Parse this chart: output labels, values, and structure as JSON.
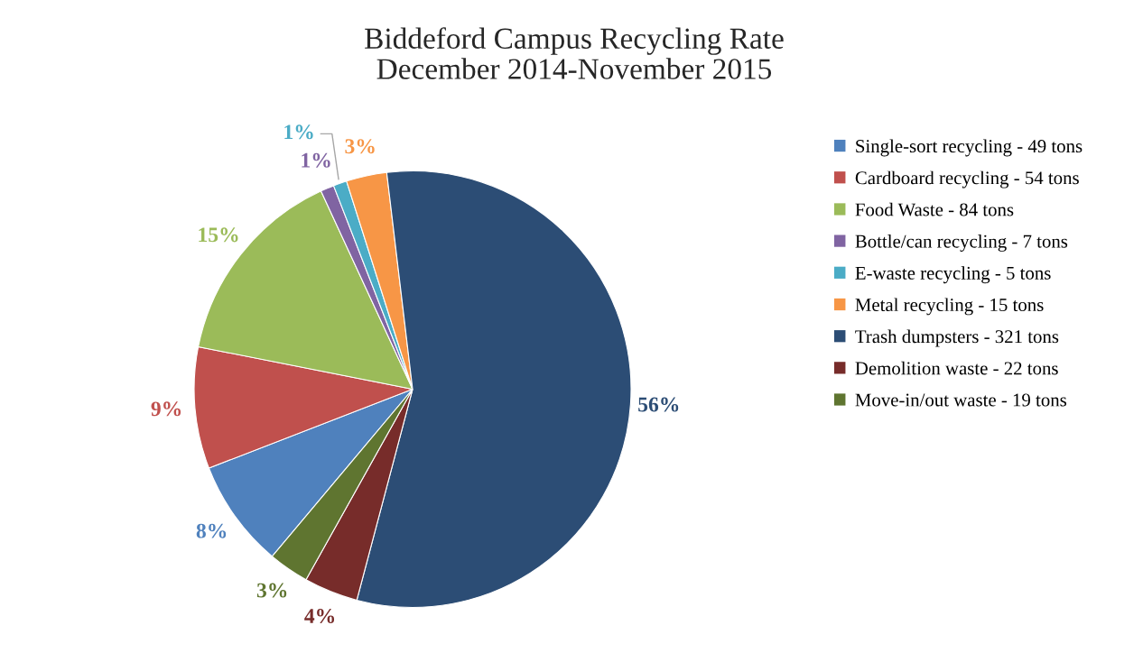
{
  "chart_data": {
    "type": "pie",
    "title": "Biddeford Campus Recycling Rate\nDecember 2014-November 2015",
    "categories": [
      "Single-sort recycling - 49 tons",
      "Cardboard recycling - 54 tons",
      "Food Waste - 84 tons",
      "Bottle/can recycling - 7 tons",
      "E-waste recycling - 5 tons",
      "Metal recycling - 15 tons",
      "Trash dumpsters - 321 tons",
      "Demolition waste - 22 tons",
      "Move-in/out waste - 19 tons"
    ],
    "values": [
      8,
      9,
      15,
      1,
      1,
      3,
      56,
      4,
      3
    ],
    "value_labels": [
      "8%",
      "9%",
      "15%",
      "1%",
      "1%",
      "3%",
      "56%",
      "4%",
      "3%"
    ],
    "colors": [
      "#4f81bd",
      "#c0504d",
      "#9bbb59",
      "#8064a2",
      "#4bacc6",
      "#f79646",
      "#2c4d75",
      "#772c2a",
      "#5f7530"
    ],
    "legend": "right"
  }
}
